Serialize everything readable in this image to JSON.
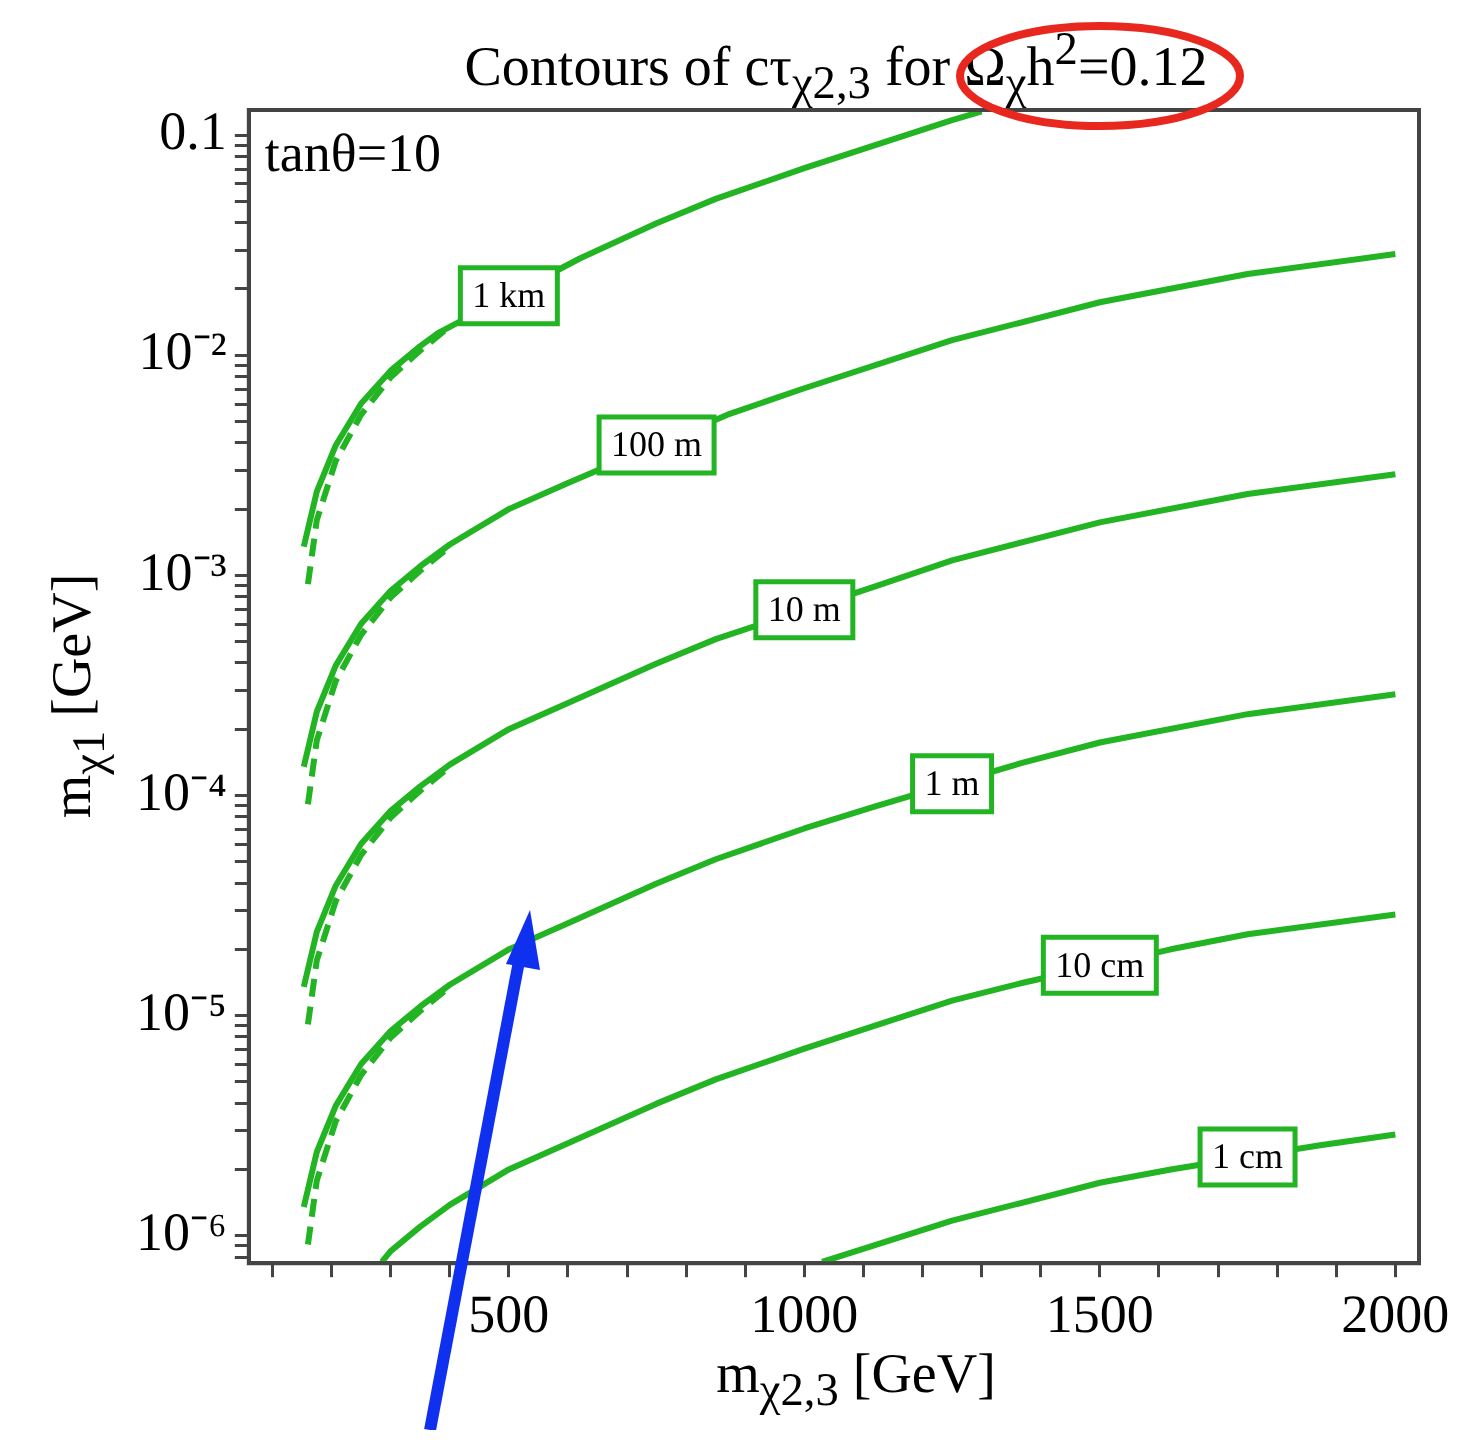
{
  "chart_data": {
    "type": "line",
    "title": "Contours of cτ$_{χ2,3}$ for Ω$_{χ}$h$^{2}$=0.12",
    "xlabel": "m$_{χ2,3}$ [GeV]",
    "ylabel": "m$_{χ1}$ [GeV]",
    "annotations": [
      "tanθ=10"
    ],
    "log": "y",
    "xlim": [
      60,
      2040
    ],
    "ylim": [
      7.5e-07,
      0.13
    ],
    "xticks": [
      {
        "value": 100,
        "label": null
      },
      {
        "value": 200,
        "label": null
      },
      {
        "value": 300,
        "label": null
      },
      {
        "value": 400,
        "label": null
      },
      500,
      {
        "value": 600,
        "label": null
      },
      {
        "value": 700,
        "label": null
      },
      {
        "value": 800,
        "label": null
      },
      {
        "value": 900,
        "label": null
      },
      1000,
      {
        "value": 1100,
        "label": null
      },
      {
        "value": 1200,
        "label": null
      },
      {
        "value": 1300,
        "label": null
      },
      {
        "value": 1400,
        "label": null
      },
      1500,
      {
        "value": 1600,
        "label": null
      },
      {
        "value": 1700,
        "label": null
      },
      {
        "value": 1800,
        "label": null
      },
      {
        "value": 1900,
        "label": null
      },
      2000
    ],
    "yticks": [
      {
        "value": 8e-07,
        "label": null
      },
      {
        "value": 9e-07,
        "label": null
      },
      {
        "value": 1e-06,
        "label": "10⁻⁶"
      },
      {
        "value": 2e-06,
        "label": null
      },
      {
        "value": 3e-06,
        "label": null
      },
      {
        "value": 4e-06,
        "label": null
      },
      {
        "value": 5e-06,
        "label": null
      },
      {
        "value": 6e-06,
        "label": null
      },
      {
        "value": 7e-06,
        "label": null
      },
      {
        "value": 8e-06,
        "label": null
      },
      {
        "value": 9e-06,
        "label": null
      },
      {
        "value": 1e-05,
        "label": "10⁻⁵"
      },
      {
        "value": 2e-05,
        "label": null
      },
      {
        "value": 3e-05,
        "label": null
      },
      {
        "value": 4e-05,
        "label": null
      },
      {
        "value": 5e-05,
        "label": null
      },
      {
        "value": 6e-05,
        "label": null
      },
      {
        "value": 7e-05,
        "label": null
      },
      {
        "value": 8e-05,
        "label": null
      },
      {
        "value": 9e-05,
        "label": null
      },
      {
        "value": 0.0001,
        "label": "10⁻⁴"
      },
      {
        "value": 0.0002,
        "label": null
      },
      {
        "value": 0.0003,
        "label": null
      },
      {
        "value": 0.0004,
        "label": null
      },
      {
        "value": 0.0005,
        "label": null
      },
      {
        "value": 0.0006,
        "label": null
      },
      {
        "value": 0.0007,
        "label": null
      },
      {
        "value": 0.0008,
        "label": null
      },
      {
        "value": 0.0009,
        "label": null
      },
      {
        "value": 0.001,
        "label": "10⁻³"
      },
      {
        "value": 0.002,
        "label": null
      },
      {
        "value": 0.003,
        "label": null
      },
      {
        "value": 0.004,
        "label": null
      },
      {
        "value": 0.005,
        "label": null
      },
      {
        "value": 0.006,
        "label": null
      },
      {
        "value": 0.007,
        "label": null
      },
      {
        "value": 0.008,
        "label": null
      },
      {
        "value": 0.009,
        "label": null
      },
      {
        "value": 0.01,
        "label": "10⁻²"
      },
      {
        "value": 0.02,
        "label": null
      },
      {
        "value": 0.03,
        "label": null
      },
      {
        "value": 0.04,
        "label": null
      },
      {
        "value": 0.05,
        "label": null
      },
      {
        "value": 0.06,
        "label": null
      },
      {
        "value": 0.07,
        "label": null
      },
      {
        "value": 0.08,
        "label": null
      },
      {
        "value": 0.09,
        "label": null
      },
      0.1
    ],
    "series": [
      {
        "name": "1 km",
        "color": "#22b422",
        "x": [
          153,
          175,
          207,
          250,
          300,
          350,
          380,
          620,
          750,
          850,
          1000,
          1250,
          1300
        ],
        "values": [
          0.00135,
          0.0024,
          0.00389,
          0.00603,
          0.00851,
          0.011,
          0.0126,
          0.0275,
          0.0398,
          0.0513,
          0.0708,
          0.117,
          0.128
        ]
      },
      {
        "name": "100 m",
        "color": "#22b422",
        "x": [
          153,
          175,
          207,
          250,
          300,
          350,
          400,
          500,
          600,
          870,
          1000,
          1250,
          1500,
          1750,
          2000
        ],
        "values": [
          0.000135,
          0.00024,
          0.000389,
          0.000603,
          0.000851,
          0.0011,
          0.00138,
          0.002,
          0.00263,
          0.00537,
          0.00708,
          0.0117,
          0.0174,
          0.0234,
          0.0288
        ]
      },
      {
        "name": "10 m",
        "color": "#22b422",
        "x": [
          153,
          175,
          207,
          250,
          300,
          350,
          400,
          500,
          600,
          750,
          850,
          1120,
          1250,
          1500,
          1750,
          2000
        ],
        "values": [
          1.35e-05,
          2.4e-05,
          3.89e-05,
          6.03e-05,
          8.51e-05,
          0.00011,
          0.000138,
          0.0002,
          0.000263,
          0.000398,
          0.000513,
          0.000891,
          0.00117,
          0.00174,
          0.00234,
          0.00288
        ]
      },
      {
        "name": "1 m",
        "color": "#22b422",
        "x": [
          153,
          175,
          207,
          250,
          300,
          350,
          400,
          500,
          600,
          750,
          850,
          1000,
          1120,
          1370,
          1500,
          1750,
          2000
        ],
        "values": [
          1.35e-06,
          2.4e-06,
          3.89e-06,
          6.03e-06,
          8.51e-06,
          1.1e-05,
          1.38e-05,
          2e-05,
          2.63e-05,
          3.98e-05,
          5.13e-05,
          7.08e-05,
          8.91e-05,
          0.000141,
          0.000174,
          0.000234,
          0.000288
        ]
      },
      {
        "name": "10 cm",
        "color": "#22b422",
        "x": [
          285,
          300,
          350,
          400,
          500,
          600,
          750,
          850,
          1000,
          1250,
          1370,
          1620,
          1750,
          2000
        ],
        "values": [
          7.6e-07,
          8.51e-07,
          1.1e-06,
          1.38e-06,
          2e-06,
          2.63e-06,
          3.98e-06,
          5.13e-06,
          7.08e-06,
          1.17e-05,
          1.41e-05,
          2e-05,
          2.34e-05,
          2.88e-05
        ]
      },
      {
        "name": "1 cm",
        "color": "#22b422",
        "x": [
          1030,
          1250,
          1500,
          1620,
          1870,
          2000
        ],
        "values": [
          7.6e-07,
          1.17e-06,
          1.74e-06,
          2e-06,
          2.57e-06,
          2.88e-06
        ]
      },
      {
        "color": "#22b422",
        "line_style": "dashed",
        "x": [
          160,
          175,
          207,
          250,
          300,
          350,
          400
        ],
        "values": [
          0.000912,
          0.00178,
          0.00331,
          0.00537,
          0.00794,
          0.0105,
          0.0135
        ]
      },
      {
        "color": "#22b422",
        "line_style": "dashed",
        "x": [
          160,
          175,
          207,
          250,
          300,
          350,
          400
        ],
        "values": [
          9.12e-05,
          0.000178,
          0.000331,
          0.000537,
          0.000794,
          0.00105,
          0.00135
        ]
      },
      {
        "color": "#22b422",
        "line_style": "dashed",
        "x": [
          160,
          175,
          207,
          250,
          300,
          350,
          400
        ],
        "values": [
          9.12e-06,
          1.78e-05,
          3.31e-05,
          5.37e-05,
          7.94e-05,
          0.000105,
          0.000135
        ]
      },
      {
        "color": "#22b422",
        "line_style": "dashed",
        "x": [
          160,
          175,
          207,
          250,
          300,
          350,
          400
        ],
        "values": [
          9.12e-07,
          1.78e-06,
          3.31e-06,
          5.37e-06,
          7.94e-06,
          1.05e-05,
          1.35e-05
        ]
      }
    ]
  }
}
